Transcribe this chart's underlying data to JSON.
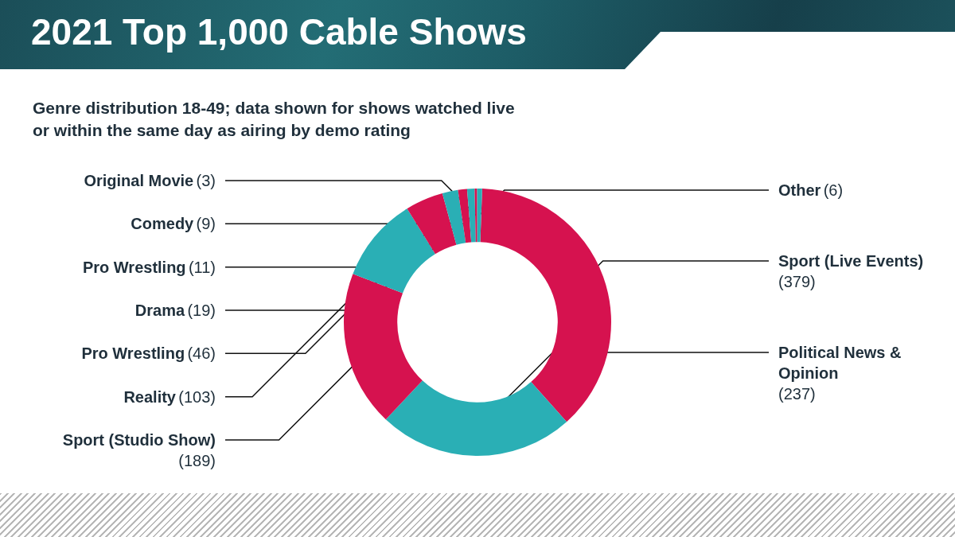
{
  "chart_data": {
    "type": "donut",
    "title": "2021 Top 1,000 Cable Shows",
    "subtitle": "Genre distribution 18-49; data shown for shows watched live or within the same day as airing by demo rating",
    "categories": [
      "Sport (Live Events)",
      "Political News & Opinion",
      "Sport (Studio Show)",
      "Reality",
      "Pro Wrestling",
      "Drama",
      "Pro Wrestling",
      "Comedy",
      "Original Movie",
      "Other"
    ],
    "values": [
      379,
      237,
      189,
      103,
      46,
      19,
      11,
      9,
      3,
      6
    ],
    "value_labels": [
      "(379)",
      "(237)",
      "(189)",
      "(103)",
      "(46)",
      "(19)",
      "(11)",
      "(9)",
      "(3)",
      "(6)"
    ],
    "colors": [
      "#d6124f",
      "#2aafb5",
      "#d6124f",
      "#2aafb5",
      "#d6124f",
      "#2aafb5",
      "#d6124f",
      "#2aafb5",
      "#d6124f",
      "#2aafb5"
    ]
  }
}
